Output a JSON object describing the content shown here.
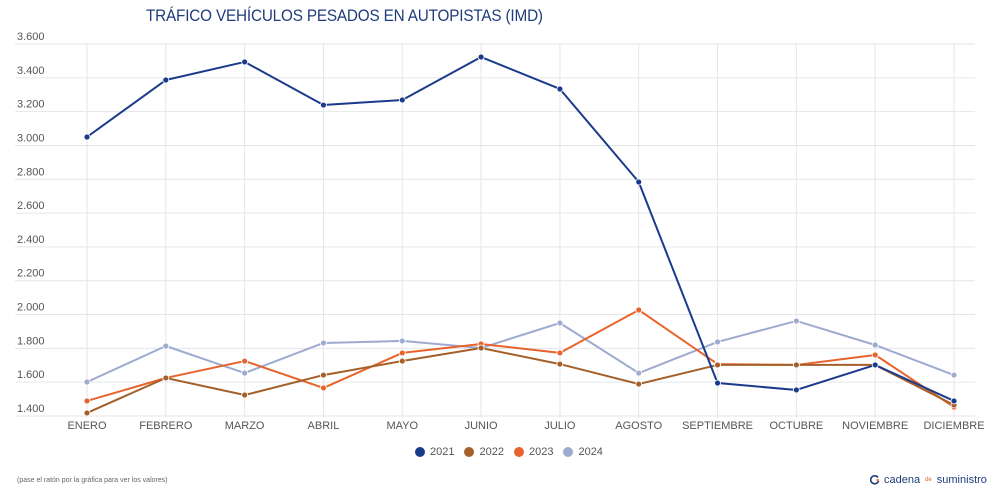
{
  "chart_data": {
    "type": "line",
    "title": "TRÁFICO VEHÍCULOS PESADOS EN AUTOPISTAS (IMD)",
    "xlabel": "",
    "ylabel": "",
    "categories": [
      "ENERO",
      "FEBRERO",
      "MARZO",
      "ABRIL",
      "MAYO",
      "JUNIO",
      "JULIO",
      "AGOSTO",
      "SEPTIEMBRE",
      "OCTUBRE",
      "NOVIEMBRE",
      "DICIEMBRE"
    ],
    "ylim": [
      1400,
      3600
    ],
    "yticks": [
      3600,
      3400,
      3200,
      3000,
      2800,
      2600,
      2400,
      2200,
      2000,
      1800,
      1600,
      1400
    ],
    "ytick_labels": [
      "3.600",
      "3.400",
      "3.200",
      "3.000",
      "2.800",
      "2.600",
      "2.400",
      "2.200",
      "2.000",
      "1.800",
      "1.600",
      "1.400"
    ],
    "grid": true,
    "legend_position": "bottom-center",
    "series": [
      {
        "name": "2021",
        "color": "#1a3a8c",
        "values": [
          3050,
          3387,
          3494,
          3239,
          3269,
          3523,
          3334,
          2784,
          1595,
          1554,
          1702,
          1489
        ]
      },
      {
        "name": "2022",
        "color": "#a5602a",
        "values": [
          1418,
          1625,
          1524,
          1642,
          1725,
          1802,
          1707,
          1589,
          1702,
          1702,
          1702,
          1465
        ]
      },
      {
        "name": "2023",
        "color": "#e8632b",
        "values": [
          1489,
          1625,
          1725,
          1566,
          1773,
          1826,
          1773,
          2027,
          1707,
          1702,
          1761,
          1453
        ]
      },
      {
        "name": "2024",
        "color": "#9eaad0",
        "values": [
          1601,
          1814,
          1654,
          1832,
          1844,
          1802,
          1950,
          1654,
          1838,
          1962,
          1820,
          1642
        ]
      }
    ]
  },
  "footer": {
    "note": "(pase el ratón por la gráfica para ver los valores)",
    "brand_part1": "cadena",
    "brand_part2": "de",
    "brand_part3": "suministro"
  }
}
